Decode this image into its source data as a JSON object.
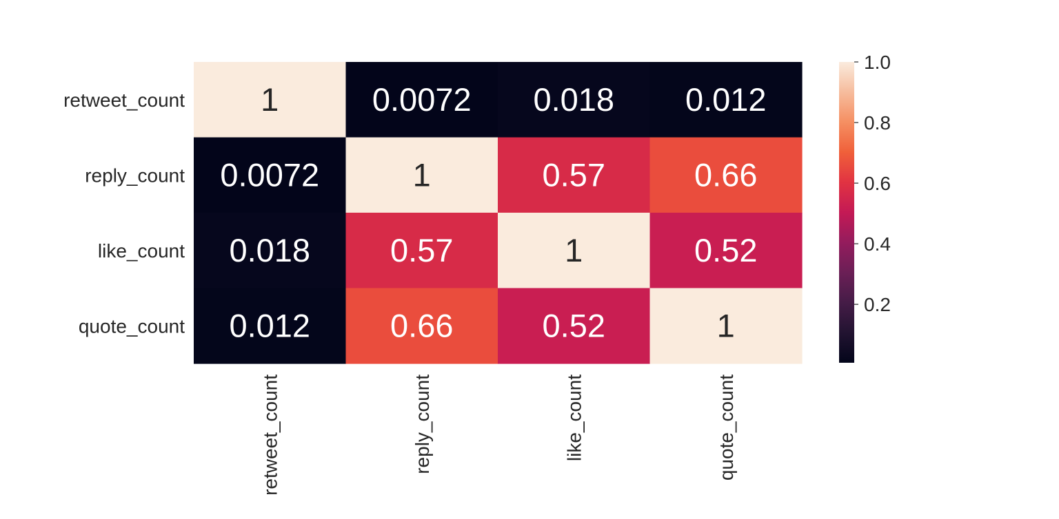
{
  "chart_data": {
    "type": "heatmap",
    "title": "",
    "xlabel": "",
    "ylabel": "",
    "rows": [
      "retweet_count",
      "reply_count",
      "like_count",
      "quote_count"
    ],
    "columns": [
      "retweet_count",
      "reply_count",
      "like_count",
      "quote_count"
    ],
    "values": [
      [
        1,
        0.0072,
        0.018,
        0.012
      ],
      [
        0.0072,
        1,
        0.57,
        0.66
      ],
      [
        0.018,
        0.57,
        1,
        0.52
      ],
      [
        0.012,
        0.66,
        0.52,
        1
      ]
    ],
    "annotations": [
      [
        "1",
        "0.0072",
        "0.018",
        "0.012"
      ],
      [
        "0.0072",
        "1",
        "0.57",
        "0.66"
      ],
      [
        "0.018",
        "0.57",
        "1",
        "0.52"
      ],
      [
        "0.012",
        "0.66",
        "0.52",
        "1"
      ]
    ],
    "colormap": "rocket",
    "colorbar": {
      "range": [
        0.0072,
        1.0
      ],
      "ticks": [
        0.2,
        0.4,
        0.6,
        0.8,
        1.0
      ],
      "tick_labels": [
        "0.2",
        "0.4",
        "0.6",
        "0.8",
        "1.0"
      ],
      "placement": "right"
    },
    "grid": false
  }
}
